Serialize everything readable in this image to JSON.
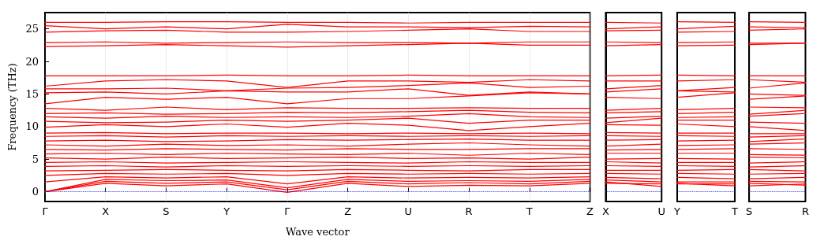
{
  "chart_data": [
    {
      "type": "line",
      "xlabel": "Wave vector",
      "ylabel": "Frequency (THz)",
      "categories": [
        "Γ",
        "X",
        "S",
        "Y",
        "Γ",
        "Z",
        "U",
        "R",
        "T",
        "Z"
      ],
      "ylim": [
        -1.5,
        27.5
      ],
      "yticks": [
        0,
        5,
        10,
        15,
        20,
        25
      ],
      "grid": "x",
      "marker": "none",
      "line_style": "solid",
      "ref_lines": [
        {
          "axis": "y",
          "value": 0,
          "color": "#0000ff",
          "line_style": "dotted"
        }
      ],
      "series": [
        {
          "color": "#ff0000",
          "values": [
            0,
            1.3,
            0.9,
            1.2,
            -0.1,
            1.3,
            0.8,
            1.0,
            0.9,
            1.3
          ]
        },
        {
          "color": "#ff0000",
          "values": [
            0,
            1.6,
            1.3,
            1.5,
            0.3,
            1.6,
            1.2,
            1.4,
            1.2,
            1.6
          ]
        },
        {
          "color": "#ff0000",
          "values": [
            0,
            1.9,
            1.7,
            1.8,
            0.6,
            1.9,
            1.6,
            1.7,
            1.6,
            1.9
          ]
        },
        {
          "color": "#ff0000",
          "values": [
            1.5,
            2.3,
            2.1,
            2.3,
            1.2,
            2.3,
            2.1,
            2.2,
            2.1,
            2.3
          ]
        },
        {
          "color": "#ff0000",
          "values": [
            2.5,
            2.8,
            2.7,
            2.8,
            2.5,
            2.8,
            2.7,
            2.8,
            2.7,
            2.8
          ]
        },
        {
          "color": "#ff0000",
          "values": [
            3.2,
            3.3,
            3.4,
            3.3,
            3.2,
            3.4,
            3.3,
            3.2,
            3.4,
            3.4
          ]
        },
        {
          "color": "#ff0000",
          "values": [
            3.9,
            4.0,
            3.8,
            4.0,
            3.9,
            4.0,
            3.9,
            4.0,
            3.9,
            4.0
          ]
        },
        {
          "color": "#ff0000",
          "values": [
            4.5,
            4.6,
            4.4,
            4.5,
            4.6,
            4.5,
            4.4,
            4.6,
            4.5,
            4.5
          ]
        },
        {
          "color": "#ff0000",
          "values": [
            5.2,
            5.0,
            5.3,
            5.1,
            5.2,
            5.3,
            5.1,
            5.2,
            5.0,
            5.3
          ]
        },
        {
          "color": "#ff0000",
          "values": [
            5.8,
            5.9,
            5.7,
            5.9,
            5.8,
            5.7,
            5.9,
            5.6,
            5.9,
            5.7
          ]
        },
        {
          "color": "#ff0000",
          "values": [
            6.5,
            6.4,
            6.6,
            6.5,
            6.4,
            6.6,
            6.5,
            6.5,
            6.6,
            6.6
          ]
        },
        {
          "color": "#ff0000",
          "values": [
            7.2,
            7.0,
            7.3,
            7.1,
            7.2,
            7.0,
            7.3,
            7.5,
            7.2,
            7.0
          ]
        },
        {
          "color": "#ff0000",
          "values": [
            7.8,
            7.9,
            7.7,
            7.8,
            8.0,
            7.9,
            8.0,
            8.1,
            7.9,
            7.9
          ]
        },
        {
          "color": "#ff0000",
          "values": [
            8.5,
            8.6,
            8.4,
            8.6,
            8.5,
            8.6,
            8.5,
            8.6,
            8.5,
            8.6
          ]
        },
        {
          "color": "#ff0000",
          "values": [
            9.0,
            9.1,
            8.9,
            9.0,
            9.0,
            8.9,
            9.0,
            8.9,
            9.0,
            8.9
          ]
        },
        {
          "color": "#ff0000",
          "values": [
            9.9,
            10.3,
            10.0,
            10.4,
            9.9,
            10.5,
            10.2,
            9.4,
            10.0,
            10.5
          ]
        },
        {
          "color": "#ff0000",
          "values": [
            10.8,
            10.6,
            10.7,
            11.0,
            10.8,
            11.0,
            11.3,
            10.5,
            11.0,
            11.0
          ]
        },
        {
          "color": "#ff0000",
          "values": [
            11.5,
            11.3,
            11.6,
            11.4,
            11.5,
            11.4,
            11.6,
            12.0,
            11.5,
            11.4
          ]
        },
        {
          "color": "#ff0000",
          "values": [
            12.0,
            12.1,
            11.9,
            12.0,
            12.2,
            12.1,
            12.3,
            12.5,
            12.2,
            12.1
          ]
        },
        {
          "color": "#ff0000",
          "values": [
            12.8,
            12.5,
            13.0,
            12.6,
            12.9,
            12.8,
            12.8,
            12.9,
            12.8,
            12.8
          ]
        },
        {
          "color": "#ff0000",
          "values": [
            13.5,
            14.5,
            14.2,
            14.5,
            13.5,
            14.3,
            14.3,
            14.7,
            15.2,
            15.0
          ]
        },
        {
          "color": "#ff0000",
          "values": [
            15.2,
            15.3,
            15.0,
            15.5,
            15.3,
            15.3,
            15.8,
            14.8,
            15.3,
            15.0
          ]
        },
        {
          "color": "#ff0000",
          "values": [
            15.8,
            15.8,
            15.9,
            15.5,
            15.9,
            16.0,
            16.3,
            16.7,
            16.0,
            16.2
          ]
        },
        {
          "color": "#ff0000",
          "values": [
            16.2,
            17.0,
            17.2,
            17.0,
            16.0,
            17.0,
            17.0,
            16.8,
            17.2,
            17.0
          ]
        },
        {
          "color": "#ff0000",
          "values": [
            17.8,
            17.8,
            17.8,
            17.9,
            17.8,
            17.8,
            17.9,
            17.8,
            17.8,
            17.8
          ]
        },
        {
          "color": "#ff0000",
          "values": [
            22.3,
            22.4,
            22.6,
            22.4,
            22.2,
            22.4,
            22.6,
            22.8,
            22.5,
            22.5
          ]
        },
        {
          "color": "#ff0000",
          "values": [
            22.9,
            23.0,
            22.8,
            22.9,
            23.0,
            22.9,
            22.9,
            22.8,
            23.0,
            23.0
          ]
        },
        {
          "color": "#ff0000",
          "values": [
            24.5,
            24.7,
            24.8,
            24.5,
            24.5,
            24.6,
            24.8,
            25.0,
            24.6,
            24.6
          ]
        },
        {
          "color": "#ff0000",
          "values": [
            25.5,
            25.0,
            25.3,
            25.0,
            25.7,
            25.3,
            25.3,
            25.2,
            25.4,
            25.3
          ]
        },
        {
          "color": "#ff0000",
          "values": [
            26.0,
            26.0,
            26.1,
            26.1,
            26.0,
            26.0,
            25.9,
            26.0,
            26.0,
            26.0
          ]
        }
      ]
    },
    {
      "type": "line",
      "categories": [
        "X",
        "U"
      ],
      "ylim": [
        -1.5,
        27.5
      ],
      "tick_labels": "x",
      "marker": "none",
      "line_style": "solid",
      "ref_lines": [
        {
          "axis": "y",
          "value": 0,
          "color": "#0000ff",
          "line_style": "dotted"
        }
      ],
      "series": [
        {
          "color": "#ff0000",
          "values": [
            1.3,
            1.2
          ]
        },
        {
          "color": "#ff0000",
          "values": [
            1.5,
            0.8
          ]
        },
        {
          "color": "#ff0000",
          "values": [
            1.8,
            1.5
          ]
        },
        {
          "color": "#ff0000",
          "values": [
            2.2,
            2.0
          ]
        },
        {
          "color": "#ff0000",
          "values": [
            2.8,
            2.7
          ]
        },
        {
          "color": "#ff0000",
          "values": [
            3.3,
            3.3
          ]
        },
        {
          "color": "#ff0000",
          "values": [
            4.0,
            3.9
          ]
        },
        {
          "color": "#ff0000",
          "values": [
            4.6,
            4.4
          ]
        },
        {
          "color": "#ff0000",
          "values": [
            5.0,
            5.1
          ]
        },
        {
          "color": "#ff0000",
          "values": [
            5.9,
            5.9
          ]
        },
        {
          "color": "#ff0000",
          "values": [
            6.4,
            6.5
          ]
        },
        {
          "color": "#ff0000",
          "values": [
            7.0,
            7.3
          ]
        },
        {
          "color": "#ff0000",
          "values": [
            7.9,
            8.0
          ]
        },
        {
          "color": "#ff0000",
          "values": [
            8.6,
            8.5
          ]
        },
        {
          "color": "#ff0000",
          "values": [
            9.1,
            9.0
          ]
        },
        {
          "color": "#ff0000",
          "values": [
            10.3,
            10.2
          ]
        },
        {
          "color": "#ff0000",
          "values": [
            10.6,
            11.3
          ]
        },
        {
          "color": "#ff0000",
          "values": [
            11.3,
            11.6
          ]
        },
        {
          "color": "#ff0000",
          "values": [
            12.1,
            12.3
          ]
        },
        {
          "color": "#ff0000",
          "values": [
            12.5,
            12.8
          ]
        },
        {
          "color": "#ff0000",
          "values": [
            14.5,
            14.3
          ]
        },
        {
          "color": "#ff0000",
          "values": [
            15.3,
            15.8
          ]
        },
        {
          "color": "#ff0000",
          "values": [
            15.8,
            16.3
          ]
        },
        {
          "color": "#ff0000",
          "values": [
            17.0,
            17.0
          ]
        },
        {
          "color": "#ff0000",
          "values": [
            17.8,
            17.9
          ]
        },
        {
          "color": "#ff0000",
          "values": [
            22.4,
            22.6
          ]
        },
        {
          "color": "#ff0000",
          "values": [
            23.0,
            22.9
          ]
        },
        {
          "color": "#ff0000",
          "values": [
            24.7,
            24.8
          ]
        },
        {
          "color": "#ff0000",
          "values": [
            25.0,
            25.3
          ]
        },
        {
          "color": "#ff0000",
          "values": [
            26.0,
            25.9
          ]
        }
      ]
    },
    {
      "type": "line",
      "categories": [
        "Y",
        "T"
      ],
      "ylim": [
        -1.5,
        27.5
      ],
      "tick_labels": "x",
      "marker": "none",
      "line_style": "solid",
      "ref_lines": [
        {
          "axis": "y",
          "value": 0,
          "color": "#0000ff",
          "line_style": "dotted"
        }
      ],
      "series": [
        {
          "color": "#ff0000",
          "values": [
            1.2,
            1.2
          ]
        },
        {
          "color": "#ff0000",
          "values": [
            1.3,
            0.9
          ]
        },
        {
          "color": "#ff0000",
          "values": [
            1.5,
            1.5
          ]
        },
        {
          "color": "#ff0000",
          "values": [
            2.2,
            2.0
          ]
        },
        {
          "color": "#ff0000",
          "values": [
            2.8,
            2.7
          ]
        },
        {
          "color": "#ff0000",
          "values": [
            3.3,
            3.4
          ]
        },
        {
          "color": "#ff0000",
          "values": [
            4.0,
            3.9
          ]
        },
        {
          "color": "#ff0000",
          "values": [
            4.5,
            4.5
          ]
        },
        {
          "color": "#ff0000",
          "values": [
            5.1,
            5.0
          ]
        },
        {
          "color": "#ff0000",
          "values": [
            5.9,
            5.9
          ]
        },
        {
          "color": "#ff0000",
          "values": [
            6.5,
            6.6
          ]
        },
        {
          "color": "#ff0000",
          "values": [
            7.1,
            7.2
          ]
        },
        {
          "color": "#ff0000",
          "values": [
            7.8,
            7.9
          ]
        },
        {
          "color": "#ff0000",
          "values": [
            8.6,
            8.5
          ]
        },
        {
          "color": "#ff0000",
          "values": [
            9.0,
            9.0
          ]
        },
        {
          "color": "#ff0000",
          "values": [
            10.4,
            10.0
          ]
        },
        {
          "color": "#ff0000",
          "values": [
            11.0,
            11.0
          ]
        },
        {
          "color": "#ff0000",
          "values": [
            11.4,
            11.5
          ]
        },
        {
          "color": "#ff0000",
          "values": [
            12.0,
            12.2
          ]
        },
        {
          "color": "#ff0000",
          "values": [
            12.6,
            12.8
          ]
        },
        {
          "color": "#ff0000",
          "values": [
            14.5,
            15.2
          ]
        },
        {
          "color": "#ff0000",
          "values": [
            15.5,
            15.3
          ]
        },
        {
          "color": "#ff0000",
          "values": [
            15.5,
            16.0
          ]
        },
        {
          "color": "#ff0000",
          "values": [
            17.0,
            17.2
          ]
        },
        {
          "color": "#ff0000",
          "values": [
            17.9,
            17.8
          ]
        },
        {
          "color": "#ff0000",
          "values": [
            22.4,
            22.5
          ]
        },
        {
          "color": "#ff0000",
          "values": [
            22.9,
            23.0
          ]
        },
        {
          "color": "#ff0000",
          "values": [
            24.5,
            24.6
          ]
        },
        {
          "color": "#ff0000",
          "values": [
            25.0,
            25.4
          ]
        },
        {
          "color": "#ff0000",
          "values": [
            26.1,
            26.0
          ]
        }
      ]
    },
    {
      "type": "line",
      "categories": [
        "S",
        "R"
      ],
      "ylim": [
        -1.5,
        27.5
      ],
      "tick_labels": "x",
      "marker": "none",
      "line_style": "solid",
      "ref_lines": [
        {
          "axis": "y",
          "value": 0,
          "color": "#0000ff",
          "line_style": "dotted"
        }
      ],
      "series": [
        {
          "color": "#ff0000",
          "values": [
            1.3,
            1.0
          ]
        },
        {
          "color": "#ff0000",
          "values": [
            0.9,
            1.2
          ]
        },
        {
          "color": "#ff0000",
          "values": [
            1.6,
            1.5
          ]
        },
        {
          "color": "#ff0000",
          "values": [
            2.0,
            2.2
          ]
        },
        {
          "color": "#ff0000",
          "values": [
            2.7,
            2.8
          ]
        },
        {
          "color": "#ff0000",
          "values": [
            3.4,
            3.2
          ]
        },
        {
          "color": "#ff0000",
          "values": [
            3.8,
            4.0
          ]
        },
        {
          "color": "#ff0000",
          "values": [
            4.4,
            4.6
          ]
        },
        {
          "color": "#ff0000",
          "values": [
            5.3,
            5.2
          ]
        },
        {
          "color": "#ff0000",
          "values": [
            5.7,
            5.6
          ]
        },
        {
          "color": "#ff0000",
          "values": [
            6.6,
            6.5
          ]
        },
        {
          "color": "#ff0000",
          "values": [
            7.3,
            7.5
          ]
        },
        {
          "color": "#ff0000",
          "values": [
            7.7,
            8.1
          ]
        },
        {
          "color": "#ff0000",
          "values": [
            8.4,
            8.6
          ]
        },
        {
          "color": "#ff0000",
          "values": [
            8.9,
            8.9
          ]
        },
        {
          "color": "#ff0000",
          "values": [
            10.0,
            9.4
          ]
        },
        {
          "color": "#ff0000",
          "values": [
            10.7,
            10.5
          ]
        },
        {
          "color": "#ff0000",
          "values": [
            11.6,
            12.0
          ]
        },
        {
          "color": "#ff0000",
          "values": [
            11.9,
            12.5
          ]
        },
        {
          "color": "#ff0000",
          "values": [
            13.0,
            12.9
          ]
        },
        {
          "color": "#ff0000",
          "values": [
            14.2,
            14.7
          ]
        },
        {
          "color": "#ff0000",
          "values": [
            15.0,
            14.8
          ]
        },
        {
          "color": "#ff0000",
          "values": [
            15.9,
            16.7
          ]
        },
        {
          "color": "#ff0000",
          "values": [
            17.2,
            16.8
          ]
        },
        {
          "color": "#ff0000",
          "values": [
            17.8,
            17.8
          ]
        },
        {
          "color": "#ff0000",
          "values": [
            22.6,
            22.8
          ]
        },
        {
          "color": "#ff0000",
          "values": [
            22.8,
            22.8
          ]
        },
        {
          "color": "#ff0000",
          "values": [
            24.8,
            25.0
          ]
        },
        {
          "color": "#ff0000",
          "values": [
            25.3,
            25.2
          ]
        },
        {
          "color": "#ff0000",
          "values": [
            26.1,
            26.0
          ]
        }
      ]
    }
  ]
}
